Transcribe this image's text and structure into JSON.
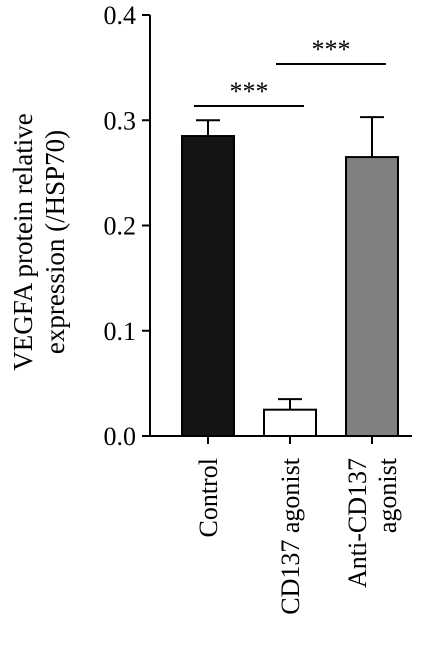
{
  "chart_data": {
    "type": "bar",
    "title": "",
    "xlabel": "",
    "ylabel_lines": [
      "VEGFA protein relative",
      "expression (/HSP70)"
    ],
    "categories": [
      {
        "lines": [
          "Control"
        ]
      },
      {
        "lines": [
          "CD137 agonist"
        ]
      },
      {
        "lines": [
          "Anti-CD137",
          "agonist"
        ]
      }
    ],
    "values": [
      0.285,
      0.025,
      0.265
    ],
    "errors": [
      0.015,
      0.01,
      0.038
    ],
    "bar_colors": [
      "#141414",
      "#ffffff",
      "#808080"
    ],
    "ylim": [
      0,
      0.4
    ],
    "yticks": [
      "0.0",
      "0.1",
      "0.2",
      "0.3",
      "0.4"
    ],
    "grid": false,
    "significance": [
      {
        "from": 0,
        "to": 1,
        "label": "***"
      },
      {
        "from": 1,
        "to": 2,
        "label": "***"
      }
    ]
  }
}
